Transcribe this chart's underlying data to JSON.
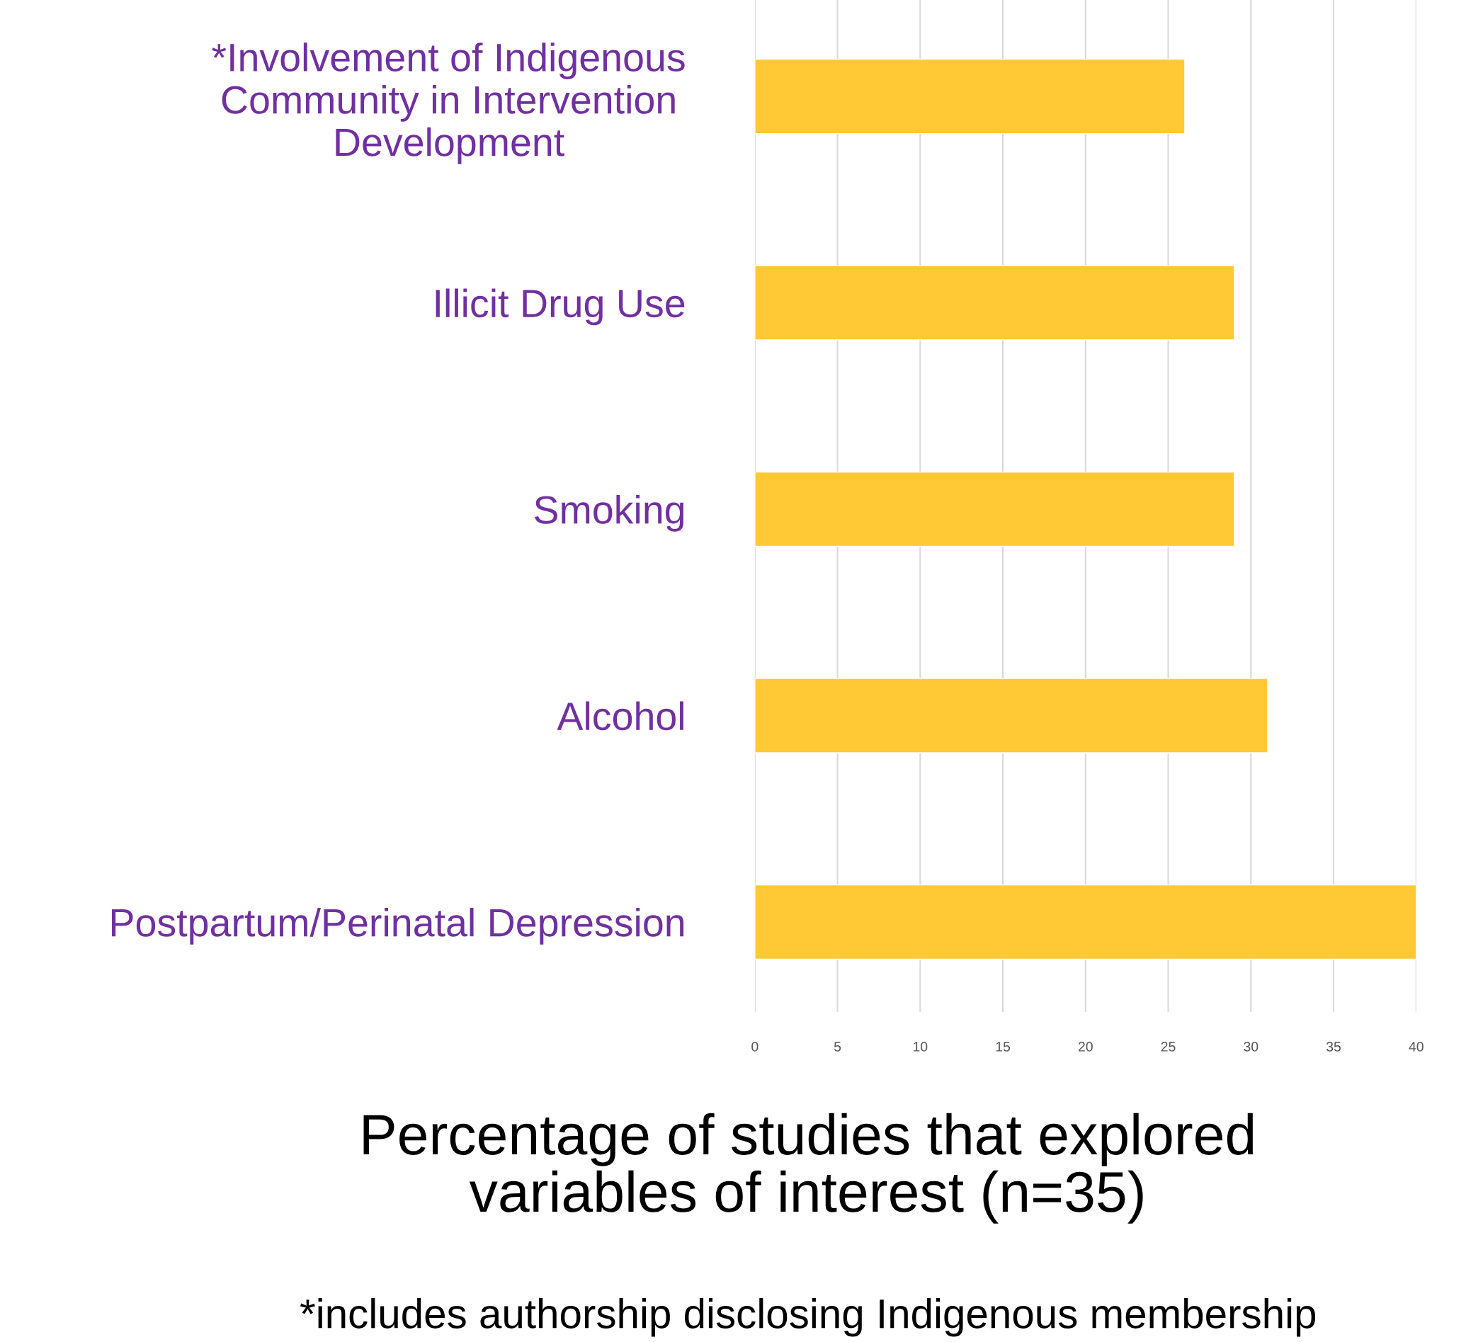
{
  "chart_data": {
    "type": "bar",
    "orientation": "horizontal",
    "categories": [
      "*Involvement of Indigenous\nCommunity in Intervention\nDevelopment",
      "Illicit Drug Use",
      "Smoking",
      "Alcohol",
      "Postpartum/Perinatal Depression"
    ],
    "values": [
      26,
      29,
      29,
      31,
      40
    ],
    "color": "#ffc936",
    "xlim": [
      0,
      40
    ],
    "xticks": [
      0,
      5,
      10,
      15,
      20,
      25,
      30,
      35,
      40
    ],
    "grid": "x",
    "xlabel": "Percentage of studies that explored\nvariables of interest (n=35)",
    "annotations": [
      "*includes authorship disclosing Indigenous membership"
    ]
  }
}
